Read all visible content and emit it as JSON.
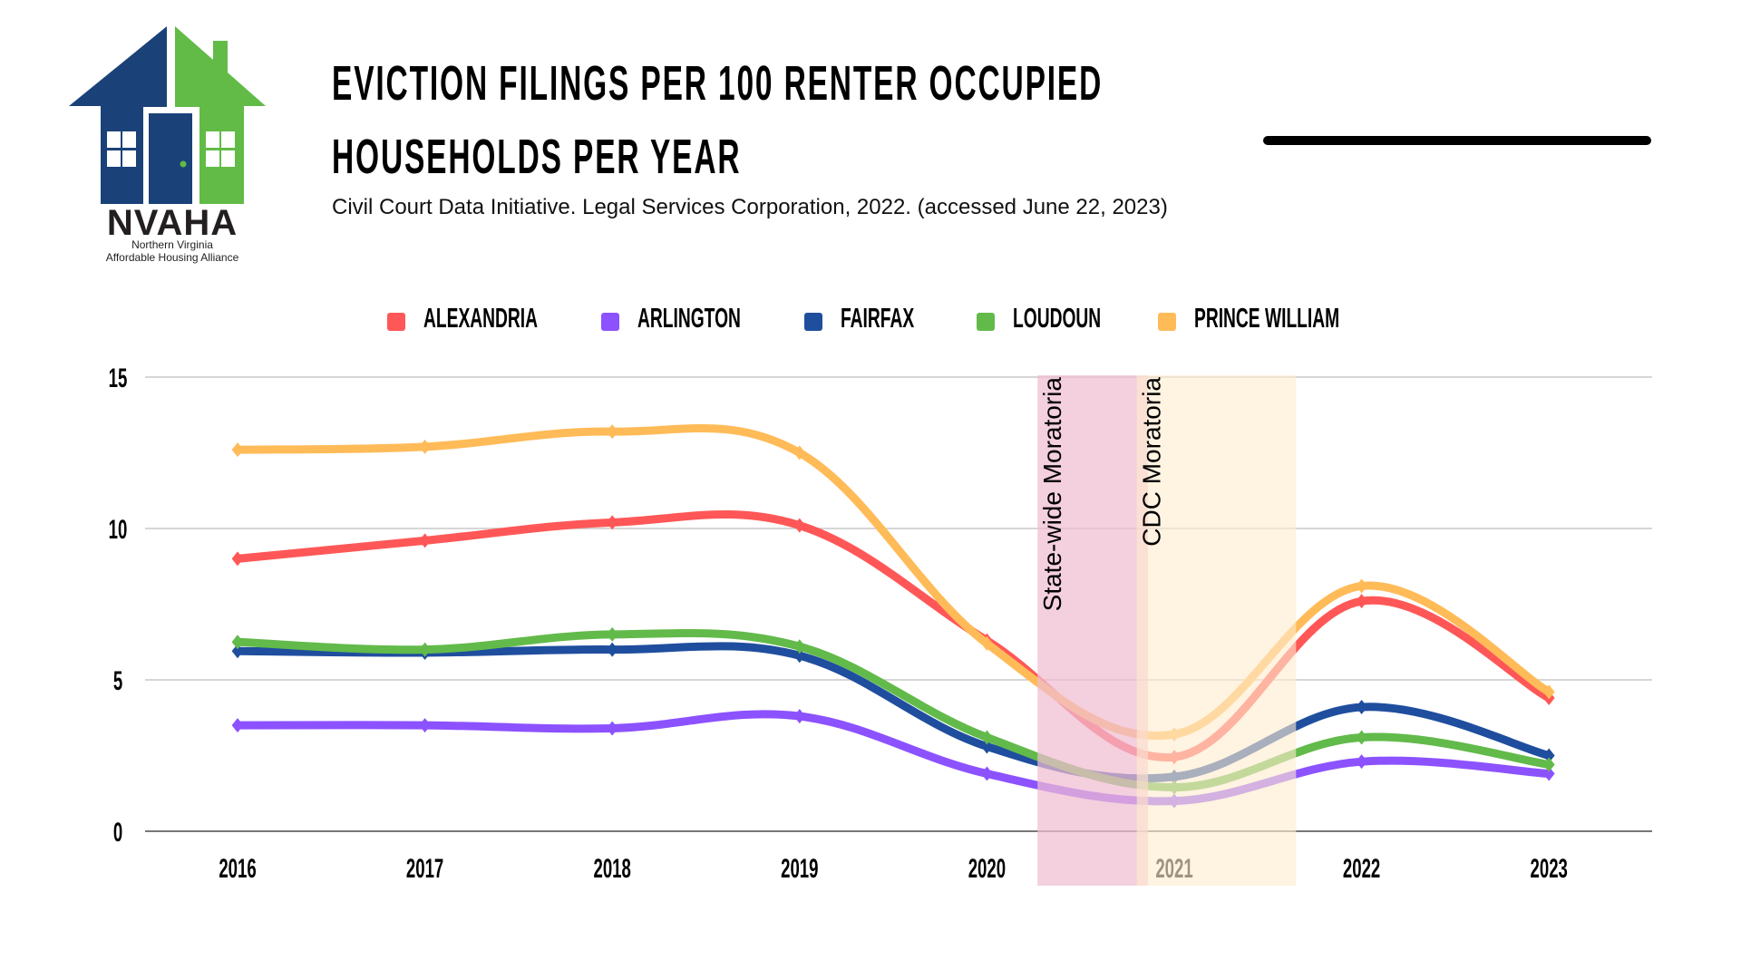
{
  "logo": {
    "name": "NVAHA",
    "subtitle_line1": "Northern Virginia",
    "subtitle_line2": "Affordable Housing Alliance",
    "colors": {
      "blue": "#1A4278",
      "green": "#62BB46"
    }
  },
  "header": {
    "title_line1": "EVICTION FILINGS PER 100 RENTER OCCUPIED",
    "title_line2": "HOUSEHOLDS PER YEAR",
    "source": "Civil Court Data Initiative. Legal Services Corporation, 2022. (accessed June 22, 2023)"
  },
  "chart_data": {
    "type": "line",
    "title": "Eviction Filings per 100 Renter Occupied Households per Year",
    "xlabel": "",
    "ylabel": "",
    "categories": [
      "2016",
      "2017",
      "2018",
      "2019",
      "2020",
      "2021",
      "2022",
      "2023"
    ],
    "ylim": [
      0,
      15
    ],
    "yticks": [
      0,
      5,
      10,
      15
    ],
    "grid": true,
    "smooth": true,
    "markers": "diamond",
    "legend_position": "top-center",
    "series": [
      {
        "name": "ALEXANDRIA",
        "color": "#FF5757",
        "values": [
          9.0,
          9.6,
          10.2,
          10.1,
          6.3,
          2.45,
          7.6,
          4.4
        ]
      },
      {
        "name": "ARLINGTON",
        "color": "#8C52FF",
        "values": [
          3.5,
          3.5,
          3.4,
          3.8,
          1.9,
          1.0,
          2.3,
          1.9
        ]
      },
      {
        "name": "FAIRFAX",
        "color": "#1F4E9E",
        "values": [
          5.95,
          5.9,
          6.0,
          5.8,
          2.8,
          1.8,
          4.1,
          2.5
        ]
      },
      {
        "name": "LOUDOUN",
        "color": "#62BA4A",
        "values": [
          6.25,
          6.0,
          6.5,
          6.1,
          3.1,
          1.45,
          3.1,
          2.2
        ]
      },
      {
        "name": "PRINCE WILLIAM",
        "color": "#FFBB58",
        "values": [
          12.6,
          12.7,
          13.2,
          12.5,
          6.2,
          3.2,
          8.1,
          4.6
        ]
      }
    ],
    "annotations": [
      {
        "label": "State-wide Moratoria",
        "x_start": 2020.27,
        "x_end": 2020.86,
        "color": "#F0BCD1"
      },
      {
        "label": "CDC Moratoria",
        "x_start": 2020.8,
        "x_end": 2021.65,
        "color": "#FFEBCF"
      }
    ]
  }
}
